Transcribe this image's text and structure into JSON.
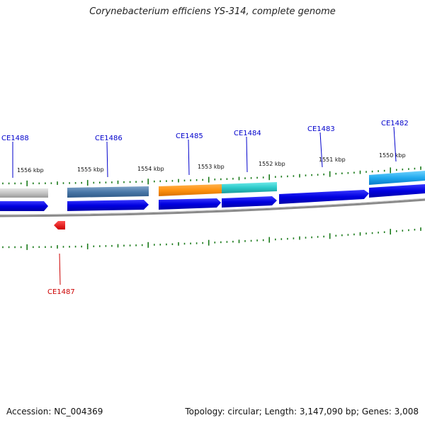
{
  "title": "Corynebacterium efficiens YS-314, complete genome",
  "footer": {
    "accession": "Accession: NC_004369",
    "info": "Topology: circular; Length: 3,147,090 bp; Genes: 3,008"
  },
  "scale_labels": [
    "1556 kbp",
    "1555 kbp",
    "1554 kbp",
    "1553 kbp",
    "1552 kbp",
    "1551 kbp",
    "1550 kbp"
  ],
  "genes": [
    {
      "label": "CE1488",
      "color": "#0000cc"
    },
    {
      "label": "CE1486",
      "color": "#0000cc"
    },
    {
      "label": "CE1485",
      "color": "#0000cc"
    },
    {
      "label": "CE1484",
      "color": "#0000cc"
    },
    {
      "label": "CE1483",
      "color": "#0000cc"
    },
    {
      "label": "CE1482",
      "color": "#0000cc"
    },
    {
      "label": "CE1487",
      "color": "#cc0000"
    }
  ],
  "colors": {
    "tick": "#1a7a1a",
    "forward_gene": "#0000dd",
    "reverse_gene": "#dd0000",
    "backbone": "#888888"
  }
}
